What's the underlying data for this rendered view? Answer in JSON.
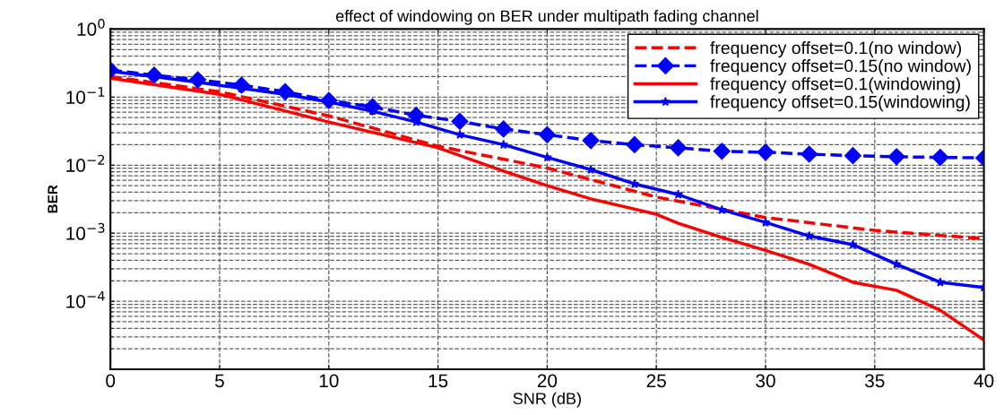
{
  "chart_data": {
    "type": "line",
    "title": "effect of windowing on BER under multipath fading channel",
    "xlabel": "SNR (dB)",
    "ylabel": "BER",
    "log": "y",
    "xlim": [
      0,
      40
    ],
    "xticks": [
      0,
      5,
      10,
      15,
      20,
      25,
      30,
      35,
      40
    ],
    "ylim": [
      1e-05,
      1
    ],
    "yticks": [
      {
        "value": 1,
        "label": "10$^{0}$"
      },
      {
        "value": 0.1,
        "label": "10$^{−1}$"
      },
      {
        "value": 0.01,
        "label": "10$^{−2}$"
      },
      {
        "value": 0.001,
        "label": "10$^{−3}$"
      },
      {
        "value": 0.0001,
        "label": "10$^{−4}$"
      }
    ],
    "grid": true,
    "legend": "top right",
    "series": [
      {
        "name": "frequency offset=0.1(no window)",
        "color": "#ff0000",
        "line_style": "dashed",
        "marker": "none",
        "x": [
          0,
          5,
          10,
          15,
          20,
          25,
          30,
          35,
          40
        ],
        "values": [
          0.2,
          0.12,
          0.053,
          0.019,
          0.0091,
          0.0034,
          0.0017,
          0.0011,
          0.00083
        ]
      },
      {
        "name": "frequency offset=0.15(no window)",
        "color": "#0000ff",
        "line_style": "dashed",
        "marker": "diamond",
        "x": [
          0,
          2,
          4,
          6,
          8,
          10,
          12,
          14,
          16,
          18,
          20,
          22,
          24,
          26,
          28,
          30,
          32,
          34,
          36,
          38,
          40
        ],
        "values": [
          0.25,
          0.21,
          0.18,
          0.15,
          0.12,
          0.089,
          0.072,
          0.054,
          0.044,
          0.034,
          0.028,
          0.023,
          0.02,
          0.018,
          0.016,
          0.0155,
          0.0145,
          0.0138,
          0.0133,
          0.013,
          0.0128
        ]
      },
      {
        "name": "frequency offset=0.1(windowing)",
        "color": "#ff0000",
        "line_style": "solid",
        "marker": "none",
        "x": [
          0,
          5,
          10,
          15,
          18,
          20,
          22,
          25,
          26,
          28,
          30,
          32,
          34,
          36,
          38,
          40
        ],
        "values": [
          0.19,
          0.11,
          0.043,
          0.018,
          0.0082,
          0.005,
          0.0032,
          0.0019,
          0.0014,
          0.00087,
          0.00056,
          0.00035,
          0.00019,
          0.000145,
          7.4e-05,
          2.7e-05
        ]
      },
      {
        "name": "frequency offset=0.15(windowing)",
        "color": "#0000ff",
        "line_style": "solid",
        "marker": "star",
        "x": [
          0,
          2,
          4,
          6,
          8,
          10,
          12,
          14,
          16,
          18,
          20,
          22,
          24,
          26,
          28,
          30,
          32,
          34,
          36,
          38,
          40
        ],
        "values": [
          0.24,
          0.2,
          0.165,
          0.135,
          0.11,
          0.085,
          0.062,
          0.043,
          0.028,
          0.02,
          0.013,
          0.0086,
          0.0053,
          0.0037,
          0.0022,
          0.00144,
          0.00091,
          0.00068,
          0.00035,
          0.00019,
          0.00016
        ]
      }
    ]
  }
}
